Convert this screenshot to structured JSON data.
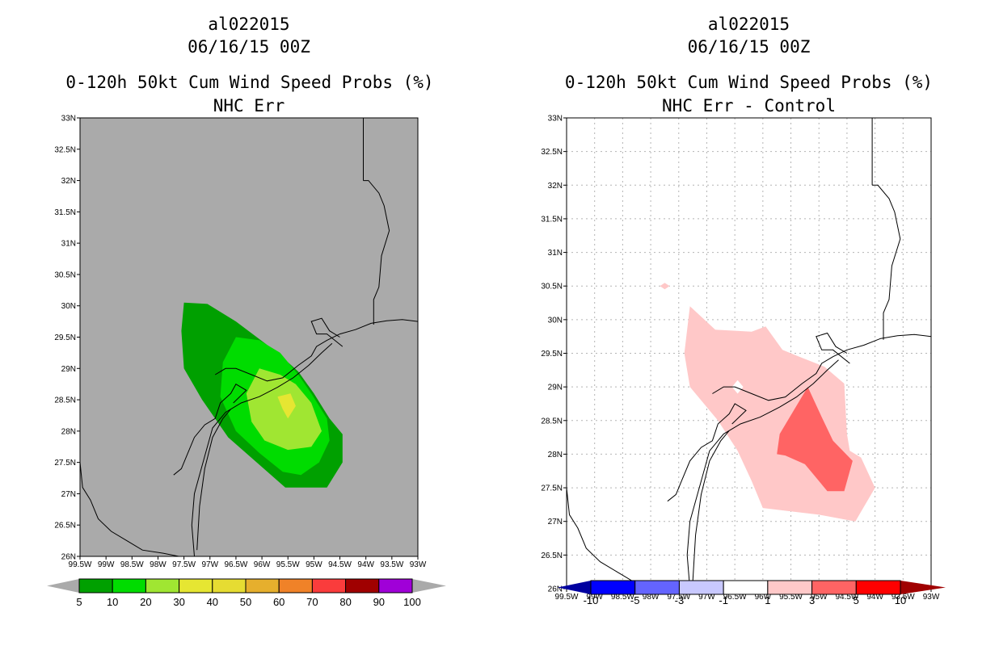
{
  "chart_data": [
    {
      "type": "contour_map",
      "panel": "left",
      "title_lines": [
        "al022015",
        "06/16/15 00Z",
        "0-120h 50kt Cum Wind Speed Probs (%)",
        "NHC Err"
      ],
      "xlabel": "",
      "ylabel": "",
      "lat_range": [
        26,
        33
      ],
      "lon_range": [
        -99.5,
        -93
      ],
      "lat_ticks": [
        "33N",
        "32.5N",
        "32N",
        "31.5N",
        "31N",
        "30.5N",
        "30N",
        "29.5N",
        "29N",
        "28.5N",
        "28N",
        "27.5N",
        "27N",
        "26.5N",
        "26N"
      ],
      "lon_ticks": [
        "99.5W",
        "99W",
        "98.5W",
        "98W",
        "97.5W",
        "97W",
        "96.5W",
        "96W",
        "95.5W",
        "95W",
        "94.5W",
        "94W",
        "93.5W",
        "93W"
      ],
      "background": "#aaaaaa",
      "grid": false,
      "colorbar": {
        "levels": [
          "5",
          "10",
          "20",
          "30",
          "40",
          "50",
          "60",
          "70",
          "80",
          "90",
          "100"
        ],
        "colors": [
          "#00a000",
          "#00dc00",
          "#a0e632",
          "#e6e632",
          "#e6dc32",
          "#e6af2d",
          "#f08228",
          "#fa3c3c",
          "#a00000",
          "#a000d8"
        ],
        "end_color": "#aaaaaa"
      },
      "contours": [
        {
          "level": "5-10",
          "color": "#00a000",
          "points": [
            [
              -97.5,
              30.05
            ],
            [
              -97.05,
              30.03
            ],
            [
              -96.5,
              29.75
            ],
            [
              -95.7,
              29.25
            ],
            [
              -95.3,
              28.95
            ],
            [
              -95,
              28.6
            ],
            [
              -94.7,
              28.2
            ],
            [
              -94.45,
              27.95
            ],
            [
              -94.45,
              27.5
            ],
            [
              -94.75,
              27.1
            ],
            [
              -95.55,
              27.1
            ],
            [
              -96.1,
              27.5
            ],
            [
              -96.65,
              27.9
            ],
            [
              -97.15,
              28.5
            ],
            [
              -97.5,
              29.0
            ],
            [
              -97.55,
              29.6
            ]
          ]
        },
        {
          "level": "10-20",
          "color": "#00dc00",
          "points": [
            [
              -96.5,
              29.5
            ],
            [
              -96.05,
              29.45
            ],
            [
              -95.65,
              29.25
            ],
            [
              -95.3,
              28.9
            ],
            [
              -95.05,
              28.6
            ],
            [
              -94.75,
              28.2
            ],
            [
              -94.7,
              27.85
            ],
            [
              -94.9,
              27.5
            ],
            [
              -95.25,
              27.3
            ],
            [
              -95.6,
              27.35
            ],
            [
              -96.05,
              27.65
            ],
            [
              -96.5,
              28.0
            ],
            [
              -96.8,
              28.55
            ],
            [
              -96.75,
              29.1
            ]
          ]
        },
        {
          "level": "20-30",
          "color": "#a0e632",
          "points": [
            [
              -96.05,
              29.0
            ],
            [
              -95.65,
              28.9
            ],
            [
              -95.35,
              28.75
            ],
            [
              -95.05,
              28.45
            ],
            [
              -94.85,
              28.0
            ],
            [
              -95.05,
              27.75
            ],
            [
              -95.5,
              27.7
            ],
            [
              -95.95,
              27.85
            ],
            [
              -96.2,
              28.15
            ],
            [
              -96.3,
              28.6
            ]
          ]
        },
        {
          "level": "30-40",
          "color": "#e6e632",
          "points": [
            [
              -95.7,
              28.55
            ],
            [
              -95.45,
              28.6
            ],
            [
              -95.35,
              28.4
            ],
            [
              -95.5,
              28.2
            ],
            [
              -95.6,
              28.35
            ]
          ]
        }
      ]
    },
    {
      "type": "contour_map",
      "panel": "right",
      "title_lines": [
        "al022015",
        "06/16/15 00Z",
        "0-120h 50kt Cum Wind Speed Probs (%)",
        "NHC Err - Control"
      ],
      "xlabel": "",
      "ylabel": "",
      "lat_range": [
        26,
        33
      ],
      "lon_range": [
        -99.5,
        -93
      ],
      "lat_ticks": [
        "33N",
        "32.5N",
        "32N",
        "31.5N",
        "31N",
        "30.5N",
        "30N",
        "29.5N",
        "29N",
        "28.5N",
        "28N",
        "27.5N",
        "27N",
        "26.5N",
        "26N"
      ],
      "lon_ticks": [
        "99.5W",
        "99W",
        "98.5W",
        "98W",
        "97.5W",
        "97W",
        "96.5W",
        "96W",
        "95.5W",
        "95W",
        "94.5W",
        "94W",
        "93.5W",
        "93W"
      ],
      "background": "#ffffff",
      "grid": true,
      "colorbar": {
        "levels": [
          "-10",
          "-5",
          "-3",
          "-1",
          "1",
          "3",
          "5",
          "10"
        ],
        "colors": [
          "#0000a0",
          "#0000ff",
          "#6464ff",
          "#c8c8ff",
          "#ffffff",
          "#ffc8c8",
          "#ff6464",
          "#ff0000",
          "#a00000"
        ],
        "end_color": "#a00000"
      },
      "contours": [
        {
          "level": "1-3",
          "color": "#ffc8c8",
          "points": [
            [
              -97.3,
              30.2
            ],
            [
              -96.85,
              29.85
            ],
            [
              -96.2,
              29.82
            ],
            [
              -95.95,
              29.9
            ],
            [
              -95.65,
              29.55
            ],
            [
              -95.35,
              29.45
            ],
            [
              -94.9,
              29.3
            ],
            [
              -94.55,
              29.05
            ],
            [
              -94.5,
              28.3
            ],
            [
              -94.45,
              28.05
            ],
            [
              -94.25,
              27.95
            ],
            [
              -94.0,
              27.5
            ],
            [
              -94.35,
              27.0
            ],
            [
              -95.0,
              27.1
            ],
            [
              -96.0,
              27.2
            ],
            [
              -96.2,
              27.6
            ],
            [
              -96.45,
              28.05
            ],
            [
              -96.8,
              28.5
            ],
            [
              -97.3,
              29.0
            ],
            [
              -97.4,
              29.5
            ]
          ]
        },
        {
          "level": "3-5",
          "color": "#ff6464",
          "points": [
            [
              -95.2,
              29.0
            ],
            [
              -94.95,
              28.55
            ],
            [
              -94.75,
              28.2
            ],
            [
              -94.4,
              27.9
            ],
            [
              -94.55,
              27.45
            ],
            [
              -94.85,
              27.45
            ],
            [
              -95.25,
              27.85
            ],
            [
              -95.6,
              27.98
            ],
            [
              -95.75,
              28.0
            ],
            [
              -95.7,
              28.3
            ]
          ]
        }
      ],
      "holes": [
        {
          "level": "<1",
          "color": "#ffffff",
          "points": [
            [
              -96.45,
              29.1
            ],
            [
              -96.55,
              29.0
            ],
            [
              -96.45,
              28.9
            ],
            [
              -96.35,
              29.0
            ]
          ]
        }
      ],
      "dots": [
        {
          "level": "1-3",
          "color": "#ffc8c8",
          "points": [
            [
              -97.75,
              30.5
            ]
          ]
        }
      ]
    }
  ],
  "coast_lines": [
    [
      [
        -96.9,
        28.9
      ],
      [
        -96.7,
        29.0
      ],
      [
        -96.5,
        29.0
      ],
      [
        -96.2,
        28.9
      ],
      [
        -95.9,
        28.8
      ],
      [
        -95.6,
        28.85
      ],
      [
        -95.3,
        29.05
      ],
      [
        -95.05,
        29.2
      ],
      [
        -94.95,
        29.35
      ],
      [
        -94.75,
        29.45
      ],
      [
        -94.5,
        29.55
      ],
      [
        -94.2,
        29.62
      ],
      [
        -93.9,
        29.72
      ],
      [
        -93.6,
        29.76
      ],
      [
        -93.3,
        29.78
      ],
      [
        -93.0,
        29.75
      ]
    ],
    [
      [
        -97.3,
        26.0
      ],
      [
        -97.35,
        26.5
      ],
      [
        -97.3,
        27.0
      ],
      [
        -97.1,
        27.6
      ],
      [
        -96.95,
        28.05
      ],
      [
        -96.7,
        28.3
      ],
      [
        -96.4,
        28.45
      ],
      [
        -96.05,
        28.55
      ],
      [
        -95.7,
        28.7
      ],
      [
        -95.4,
        28.85
      ],
      [
        -95.1,
        29.05
      ],
      [
        -94.85,
        29.25
      ],
      [
        -94.65,
        29.4
      ]
    ],
    [
      [
        -97.25,
        26.1
      ],
      [
        -97.2,
        26.8
      ],
      [
        -97.1,
        27.4
      ],
      [
        -96.95,
        27.9
      ],
      [
        -96.75,
        28.2
      ],
      [
        -96.6,
        28.35
      ]
    ],
    [
      [
        -97.7,
        27.3
      ],
      [
        -97.55,
        27.4
      ],
      [
        -97.45,
        27.6
      ],
      [
        -97.3,
        27.9
      ],
      [
        -97.1,
        28.1
      ],
      [
        -96.9,
        28.2
      ],
      [
        -96.8,
        28.45
      ],
      [
        -96.6,
        28.6
      ],
      [
        -96.5,
        28.75
      ],
      [
        -96.3,
        28.65
      ],
      [
        -96.55,
        28.45
      ]
    ],
    [
      [
        -94.45,
        29.35
      ],
      [
        -94.75,
        29.55
      ],
      [
        -94.95,
        29.55
      ],
      [
        -95.05,
        29.75
      ],
      [
        -94.85,
        29.8
      ],
      [
        -94.7,
        29.6
      ],
      [
        -94.5,
        29.5
      ]
    ],
    [
      [
        -93.85,
        29.7
      ],
      [
        -93.85,
        30.1
      ],
      [
        -93.75,
        30.3
      ],
      [
        -93.7,
        30.8
      ],
      [
        -93.55,
        31.2
      ],
      [
        -93.65,
        31.6
      ],
      [
        -93.75,
        31.8
      ],
      [
        -93.95,
        32.0
      ],
      [
        -94.05,
        32.0
      ]
    ],
    [
      [
        -94.05,
        32.0
      ],
      [
        -94.05,
        33.0
      ]
    ],
    [
      [
        -99.5,
        27.5
      ],
      [
        -99.45,
        27.1
      ],
      [
        -99.3,
        26.9
      ],
      [
        -99.15,
        26.6
      ],
      [
        -98.9,
        26.4
      ],
      [
        -98.6,
        26.25
      ],
      [
        -98.3,
        26.1
      ],
      [
        -97.9,
        26.05
      ],
      [
        -97.6,
        26.0
      ]
    ]
  ]
}
